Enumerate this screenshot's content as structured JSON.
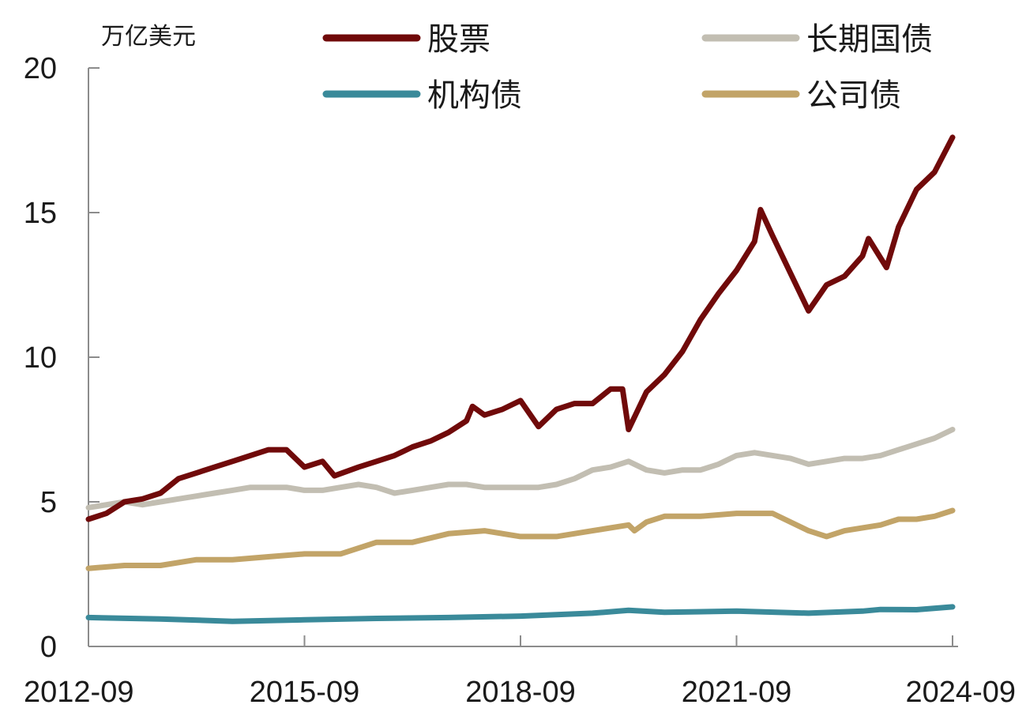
{
  "chart_data": {
    "type": "line",
    "ylabel": "万亿美元",
    "title": "",
    "xlabel": "",
    "ylim": [
      0,
      20
    ],
    "y_ticks": [
      0,
      5,
      10,
      15,
      20
    ],
    "y_tick_labels": [
      "0",
      "5",
      "10",
      "15",
      "20"
    ],
    "x_ticks": [
      "2012-09",
      "2015-09",
      "2018-09",
      "2021-09",
      "2024-09"
    ],
    "x_tick_labels": [
      "2012-09",
      "2015-09",
      "2018-09",
      "2021-09",
      "2024-09"
    ],
    "xlim": [
      "2012-09",
      "2024-09"
    ],
    "grid": false,
    "legend": "top, two columns",
    "series": [
      {
        "name": "股票",
        "color": "#700a0a",
        "points": [
          [
            "2012-09",
            4.4
          ],
          [
            "2012-12",
            4.6
          ],
          [
            "2013-03",
            5.0
          ],
          [
            "2013-06",
            5.1
          ],
          [
            "2013-09",
            5.3
          ],
          [
            "2013-12",
            5.8
          ],
          [
            "2014-03",
            6.0
          ],
          [
            "2014-06",
            6.2
          ],
          [
            "2014-09",
            6.4
          ],
          [
            "2014-12",
            6.6
          ],
          [
            "2015-03",
            6.8
          ],
          [
            "2015-06",
            6.8
          ],
          [
            "2015-09",
            6.2
          ],
          [
            "2015-12",
            6.4
          ],
          [
            "2016-02",
            5.9
          ],
          [
            "2016-06",
            6.2
          ],
          [
            "2016-09",
            6.4
          ],
          [
            "2016-12",
            6.6
          ],
          [
            "2017-03",
            6.9
          ],
          [
            "2017-06",
            7.1
          ],
          [
            "2017-09",
            7.4
          ],
          [
            "2017-12",
            7.8
          ],
          [
            "2018-01",
            8.3
          ],
          [
            "2018-03",
            8.0
          ],
          [
            "2018-06",
            8.2
          ],
          [
            "2018-09",
            8.5
          ],
          [
            "2018-12",
            7.6
          ],
          [
            "2019-03",
            8.2
          ],
          [
            "2019-06",
            8.4
          ],
          [
            "2019-09",
            8.4
          ],
          [
            "2019-12",
            8.9
          ],
          [
            "2020-02",
            8.9
          ],
          [
            "2020-03",
            7.5
          ],
          [
            "2020-06",
            8.8
          ],
          [
            "2020-09",
            9.4
          ],
          [
            "2020-12",
            10.2
          ],
          [
            "2021-03",
            11.3
          ],
          [
            "2021-06",
            12.2
          ],
          [
            "2021-09",
            13.0
          ],
          [
            "2021-12",
            14.0
          ],
          [
            "2022-01",
            15.1
          ],
          [
            "2022-03",
            14.2
          ],
          [
            "2022-06",
            12.9
          ],
          [
            "2022-09",
            11.6
          ],
          [
            "2022-12",
            12.5
          ],
          [
            "2023-03",
            12.8
          ],
          [
            "2023-06",
            13.5
          ],
          [
            "2023-07",
            14.1
          ],
          [
            "2023-10",
            13.1
          ],
          [
            "2023-12",
            14.5
          ],
          [
            "2024-03",
            15.8
          ],
          [
            "2024-06",
            16.4
          ],
          [
            "2024-09",
            17.6
          ]
        ]
      },
      {
        "name": "长期国债",
        "color": "#c2beb2",
        "points": [
          [
            "2012-09",
            4.8
          ],
          [
            "2012-12",
            4.9
          ],
          [
            "2013-03",
            5.0
          ],
          [
            "2013-06",
            4.9
          ],
          [
            "2013-09",
            5.0
          ],
          [
            "2013-12",
            5.1
          ],
          [
            "2014-03",
            5.2
          ],
          [
            "2014-06",
            5.3
          ],
          [
            "2014-09",
            5.4
          ],
          [
            "2014-12",
            5.5
          ],
          [
            "2015-03",
            5.5
          ],
          [
            "2015-06",
            5.5
          ],
          [
            "2015-09",
            5.4
          ],
          [
            "2015-12",
            5.4
          ],
          [
            "2016-03",
            5.5
          ],
          [
            "2016-06",
            5.6
          ],
          [
            "2016-09",
            5.5
          ],
          [
            "2016-12",
            5.3
          ],
          [
            "2017-03",
            5.4
          ],
          [
            "2017-06",
            5.5
          ],
          [
            "2017-09",
            5.6
          ],
          [
            "2017-12",
            5.6
          ],
          [
            "2018-03",
            5.5
          ],
          [
            "2018-06",
            5.5
          ],
          [
            "2018-09",
            5.5
          ],
          [
            "2018-12",
            5.5
          ],
          [
            "2019-03",
            5.6
          ],
          [
            "2019-06",
            5.8
          ],
          [
            "2019-09",
            6.1
          ],
          [
            "2019-12",
            6.2
          ],
          [
            "2020-03",
            6.4
          ],
          [
            "2020-06",
            6.1
          ],
          [
            "2020-09",
            6.0
          ],
          [
            "2020-12",
            6.1
          ],
          [
            "2021-03",
            6.1
          ],
          [
            "2021-06",
            6.3
          ],
          [
            "2021-09",
            6.6
          ],
          [
            "2021-12",
            6.7
          ],
          [
            "2022-03",
            6.6
          ],
          [
            "2022-06",
            6.5
          ],
          [
            "2022-09",
            6.3
          ],
          [
            "2022-12",
            6.4
          ],
          [
            "2023-03",
            6.5
          ],
          [
            "2023-06",
            6.5
          ],
          [
            "2023-09",
            6.6
          ],
          [
            "2023-12",
            6.8
          ],
          [
            "2024-03",
            7.0
          ],
          [
            "2024-06",
            7.2
          ],
          [
            "2024-09",
            7.5
          ]
        ]
      },
      {
        "name": "机构债",
        "color": "#3a8a9a",
        "points": [
          [
            "2012-09",
            1.0
          ],
          [
            "2013-09",
            0.95
          ],
          [
            "2014-09",
            0.87
          ],
          [
            "2015-09",
            0.92
          ],
          [
            "2016-09",
            0.97
          ],
          [
            "2017-09",
            1.0
          ],
          [
            "2018-09",
            1.05
          ],
          [
            "2019-09",
            1.15
          ],
          [
            "2020-03",
            1.25
          ],
          [
            "2020-09",
            1.18
          ],
          [
            "2021-09",
            1.22
          ],
          [
            "2022-09",
            1.15
          ],
          [
            "2023-06",
            1.22
          ],
          [
            "2023-09",
            1.28
          ],
          [
            "2024-03",
            1.27
          ],
          [
            "2024-09",
            1.37
          ]
        ]
      },
      {
        "name": "公司债",
        "color": "#c2a468",
        "points": [
          [
            "2012-09",
            2.7
          ],
          [
            "2013-03",
            2.8
          ],
          [
            "2013-09",
            2.8
          ],
          [
            "2014-03",
            3.0
          ],
          [
            "2014-09",
            3.0
          ],
          [
            "2015-03",
            3.1
          ],
          [
            "2015-09",
            3.2
          ],
          [
            "2016-03",
            3.2
          ],
          [
            "2016-09",
            3.6
          ],
          [
            "2017-03",
            3.6
          ],
          [
            "2017-09",
            3.9
          ],
          [
            "2018-03",
            4.0
          ],
          [
            "2018-09",
            3.8
          ],
          [
            "2019-03",
            3.8
          ],
          [
            "2019-09",
            4.0
          ],
          [
            "2020-03",
            4.2
          ],
          [
            "2020-04",
            4.0
          ],
          [
            "2020-06",
            4.3
          ],
          [
            "2020-09",
            4.5
          ],
          [
            "2021-03",
            4.5
          ],
          [
            "2021-09",
            4.6
          ],
          [
            "2022-03",
            4.6
          ],
          [
            "2022-06",
            4.3
          ],
          [
            "2022-09",
            4.0
          ],
          [
            "2022-12",
            3.8
          ],
          [
            "2023-03",
            4.0
          ],
          [
            "2023-06",
            4.1
          ],
          [
            "2023-09",
            4.2
          ],
          [
            "2023-12",
            4.4
          ],
          [
            "2024-03",
            4.4
          ],
          [
            "2024-06",
            4.5
          ],
          [
            "2024-09",
            4.7
          ]
        ]
      }
    ]
  }
}
